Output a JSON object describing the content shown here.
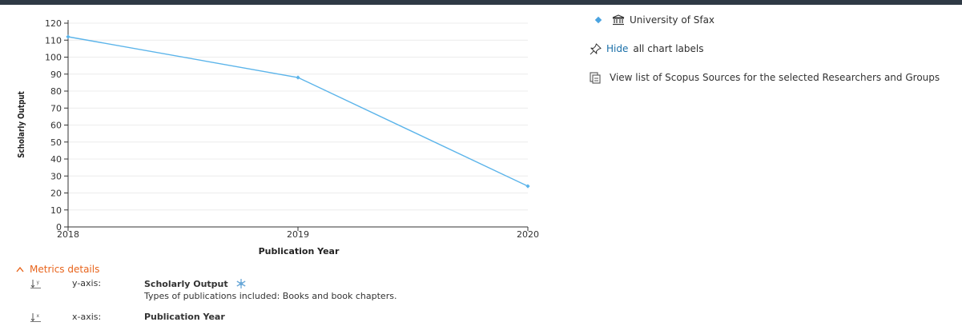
{
  "chart_data": {
    "type": "line",
    "x": [
      2018,
      2019,
      2020
    ],
    "series": [
      {
        "name": "University of Sfax",
        "values": [
          112,
          88,
          24
        ],
        "color": "#5bb4ea"
      }
    ],
    "xlabel": "Publication Year",
    "ylabel": "Scholarly Output",
    "ylim": [
      0,
      120
    ],
    "yticks": [
      "0",
      "10",
      "20",
      "30",
      "40",
      "50",
      "60",
      "70",
      "80",
      "90",
      "100",
      "110",
      "120"
    ],
    "xticks": [
      "2018",
      "2019",
      "2020"
    ],
    "grid": true,
    "legend_position": "right"
  },
  "legend": {
    "items": [
      {
        "label": "University of Sfax",
        "icon": "institution-icon",
        "color": "#4aa3e0"
      }
    ]
  },
  "labels_toggle": {
    "link": "Hide",
    "text": "all chart labels",
    "icon": "pin-icon"
  },
  "sources_link": {
    "text": "View list of Scopus Sources for the selected Researchers and Groups",
    "icon": "document-icon"
  },
  "metrics": {
    "toggle_label": "Metrics details",
    "toggle_icon": "chevron-up-icon",
    "accent_color": "#e8641c",
    "y_axis": {
      "key": "y-axis:",
      "name": "Scholarly Output",
      "description": "Types of publications included: Books and book chapters.",
      "icon": "snowflake-icon"
    },
    "x_axis": {
      "key": "x-axis:",
      "name": "Publication Year"
    }
  }
}
